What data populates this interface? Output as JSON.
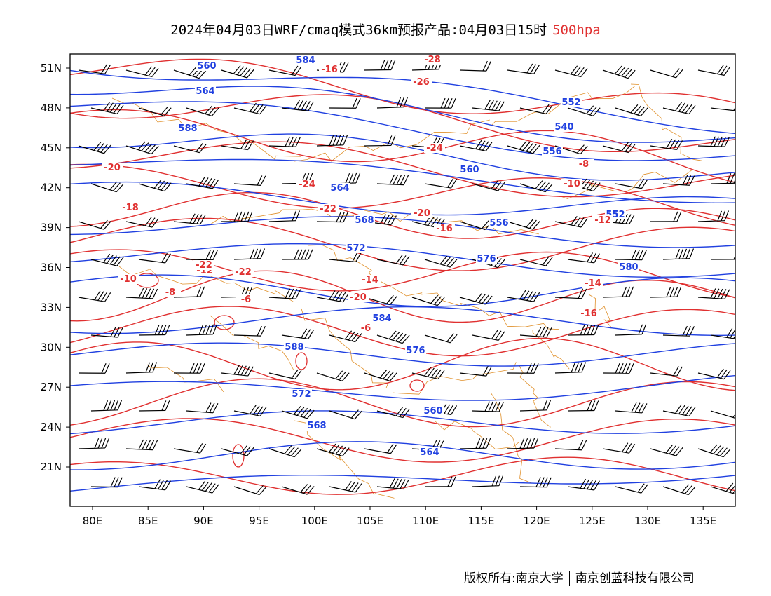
{
  "header": {
    "title": "2024年04月03日WRF/cmaq模式36km预报产品:04月03日15时",
    "level": "500hpa",
    "level_color": "#e03030"
  },
  "colors": {
    "geopotential": "#2040e0",
    "temperature": "#e03030",
    "border": "#e0902a",
    "wind": "#000000"
  },
  "axes": {
    "lon_labels": [
      "80E",
      "85E",
      "90E",
      "95E",
      "100E",
      "105E",
      "110E",
      "115E",
      "120E",
      "125E",
      "130E",
      "135E"
    ],
    "lat_labels": [
      "51N",
      "48N",
      "45N",
      "42N",
      "39N",
      "36N",
      "33N",
      "30N",
      "27N",
      "24N",
      "21N"
    ]
  },
  "contour_labels": {
    "geopotential": [
      "560",
      "564",
      "588",
      "584",
      "552",
      "540",
      "556",
      "560",
      "564",
      "568",
      "572",
      "576",
      "580",
      "584",
      "588",
      "576",
      "572",
      "568",
      "564",
      "560",
      "552",
      "556"
    ],
    "temperature": [
      "-28",
      "-26",
      "-24",
      "-22",
      "-20",
      "-18",
      "-16",
      "-14",
      "-12",
      "-10",
      "-8",
      "-6",
      "-24",
      "-22",
      "-20",
      "-16",
      "-14",
      "-12",
      "-10",
      "-8",
      "-6",
      "-22",
      "-20",
      "-16"
    ]
  },
  "footer": {
    "left": "版权所有:南京大学",
    "right": "南京创蓝科技有限公司"
  }
}
